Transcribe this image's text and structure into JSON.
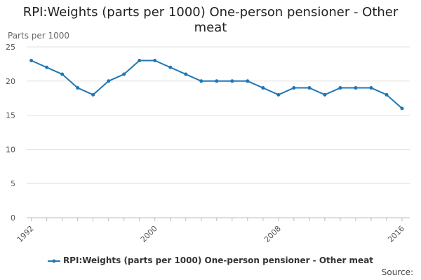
{
  "chart_data": {
    "type": "line",
    "title": "RPI:Weights (parts per 1000) One-person pensioner - Other meat",
    "ylabel": "Parts per 1000",
    "xlabel": "",
    "x": [
      1992,
      1993,
      1994,
      1995,
      1996,
      1997,
      1998,
      1999,
      2000,
      2001,
      2002,
      2003,
      2004,
      2005,
      2006,
      2007,
      2008,
      2009,
      2010,
      2011,
      2012,
      2013,
      2014,
      2015,
      2016
    ],
    "x_tick_labels": [
      "1992",
      "2000",
      "2008",
      "2016"
    ],
    "x_tick_values": [
      1992,
      2000,
      2008,
      2016
    ],
    "ylim": [
      0,
      25
    ],
    "y_ticks": [
      0,
      5,
      10,
      15,
      20,
      25
    ],
    "grid": "horizontal",
    "legend_position": "bottom",
    "series": [
      {
        "name": "RPI:Weights (parts per 1000) One-person pensioner - Other meat",
        "color": "#1f77b4",
        "values": [
          23,
          22,
          21,
          19,
          18,
          20,
          21,
          23,
          23,
          22,
          21,
          20,
          20,
          20,
          20,
          19,
          18,
          19,
          19,
          18,
          19,
          19,
          19,
          18,
          16
        ]
      }
    ],
    "source_label": "Source:"
  }
}
